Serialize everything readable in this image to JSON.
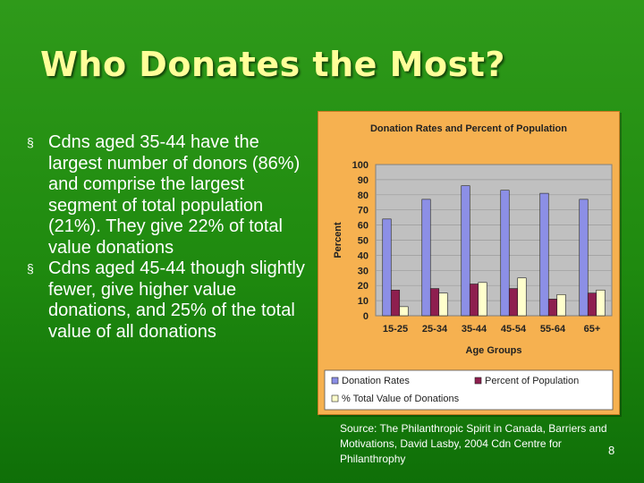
{
  "slide": {
    "title": "Who Donates the Most?",
    "bullets": [
      "Cdns aged 35-44 have the largest number of donors (86%) and comprise the largest segment of total population (21%).  They give 22% of total value donations",
      "Cdns aged 45-44 though slightly fewer, give higher value donations, and 25% of the total value of all donations"
    ],
    "bullet_marker": "§",
    "source": "Source:  The Philanthropic Spirit in Canada, Barriers and Motivations, David Lasby, 2004 Cdn Centre for Philanthrophy",
    "slide_number": "8"
  },
  "chart_data": {
    "type": "bar",
    "title": "Donation Rates and Percent of Population",
    "xlabel": "Age Groups",
    "ylabel": "Percent",
    "categories": [
      "15-25",
      "25-34",
      "35-44",
      "45-54",
      "55-64",
      "65+"
    ],
    "ylim": [
      0,
      100
    ],
    "yticks": [
      0,
      10,
      20,
      30,
      40,
      50,
      60,
      70,
      80,
      90,
      100
    ],
    "grid": true,
    "legend_position": "bottom",
    "series": [
      {
        "name": "Donation Rates",
        "values": [
          64,
          77,
          86,
          83,
          81,
          77
        ],
        "color": "#8c8fe6"
      },
      {
        "name": "Percent of Population",
        "values": [
          17,
          18,
          21,
          18,
          11,
          15
        ],
        "color": "#8e1f4f"
      },
      {
        "name": "% Total Value of Donations",
        "values": [
          6,
          15,
          22,
          25,
          14,
          17
        ],
        "color": "#ffffcc"
      }
    ],
    "plot_background": "#c0c0c0"
  }
}
